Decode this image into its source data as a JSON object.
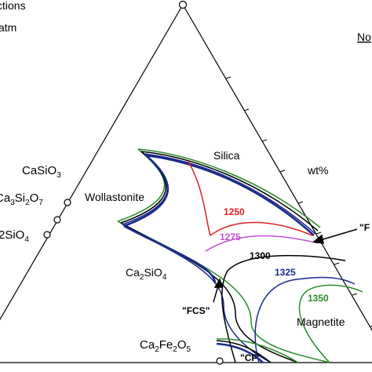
{
  "header": {
    "title_fragment": "ctions",
    "subtitle_fragment": "atm",
    "note_fragment": "No"
  },
  "units": "wt%",
  "phase_fields": {
    "silica": "Silica",
    "wollastonite": "Wollastonite",
    "magnetite": "Magnetite",
    "ca2sio4": {
      "parts": [
        "Ca",
        "2",
        "SiO",
        "4"
      ]
    }
  },
  "compounds": [
    {
      "parts": [
        "CaSiO",
        "3"
      ]
    },
    {
      "parts": [
        "Ca",
        "3",
        "Si",
        "2",
        "O",
        "7"
      ]
    },
    {
      "parts": [
        "2SiO",
        "4"
      ]
    },
    {
      "parts": [
        "Ca",
        "2",
        "Fe",
        "2",
        "O",
        "5"
      ]
    }
  ],
  "isotherms": [
    {
      "label": 1250,
      "color": "#e02020"
    },
    {
      "label": 1275,
      "color": "#c050d0"
    },
    {
      "label": 1300,
      "color": "#000000"
    },
    {
      "label": 1325,
      "color": "#1a2a8a"
    },
    {
      "label": 1350,
      "color": "#2a8a2a"
    }
  ],
  "annotations": {
    "f": "\"F",
    "fcs": "\"FCS\"",
    "cf": "\"CF\""
  }
}
